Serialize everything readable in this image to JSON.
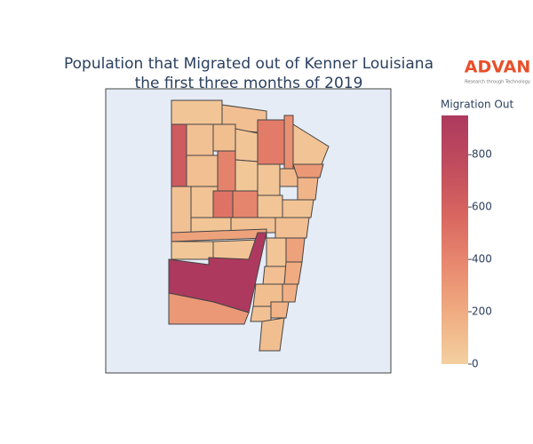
{
  "chart_data": {
    "type": "choropleth",
    "title": [
      "Population that Migrated out of Kenner Louisiana",
      "the first three months of 2019"
    ],
    "logo": {
      "name": "ADVAN",
      "tagline": "Research through Technology"
    },
    "colorbar": {
      "title": "Migration Out",
      "range": [
        0,
        950
      ],
      "ticks": [
        0,
        200,
        400,
        600,
        800
      ],
      "colors": [
        "#f3d0a0",
        "#f0ad82",
        "#e8896f",
        "#d8665f",
        "#c04c5e",
        "#ad3a5e"
      ]
    },
    "values": [
      60,
      90,
      650,
      80,
      100,
      60,
      450,
      350,
      70,
      90,
      420,
      50,
      60,
      120,
      300,
      150,
      80,
      70,
      500,
      400,
      60,
      70,
      60,
      80,
      90,
      250,
      50,
      70,
      60,
      250,
      950,
      90,
      200,
      100,
      180,
      300,
      80,
      150,
      100
    ]
  }
}
